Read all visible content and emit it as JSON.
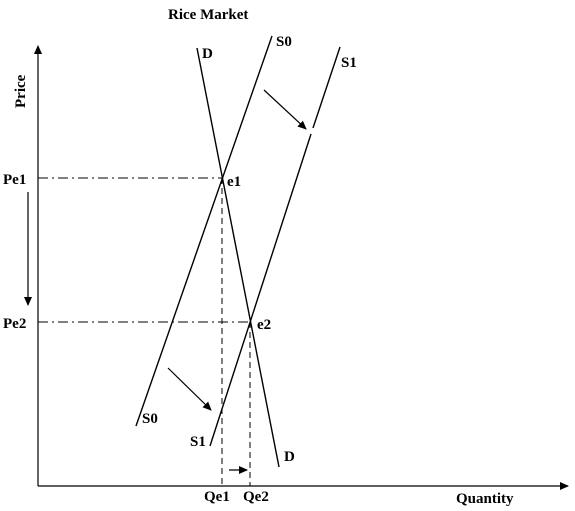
{
  "diagram": {
    "title": "Rice Market",
    "y_axis_label": "Price",
    "x_axis_label": "Quantity",
    "demand_label_top": "D",
    "demand_label_bottom": "D",
    "supply0_label_top": "S0",
    "supply0_label_bottom": "S0",
    "supply1_label_top": "S1",
    "supply1_label_bottom": "S1",
    "equilibrium_1": "e1",
    "equilibrium_2": "e2",
    "price_1": "Pe1",
    "price_2": "Pe2",
    "quantity_1": "Qe1",
    "quantity_2": "Qe2"
  }
}
